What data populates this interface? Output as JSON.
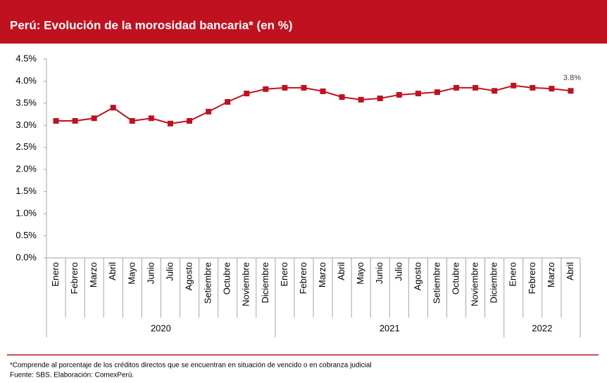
{
  "chart_data": {
    "type": "line",
    "title": "Perú: Evolución de la morosidad bancaria* (en %)",
    "categories": [
      "Enero",
      "Febrero",
      "Marzo",
      "Abril",
      "Mayo",
      "Junio",
      "Julio",
      "Agosto",
      "Setiembre",
      "Octubre",
      "Noviembre",
      "Diciembre",
      "Enero",
      "Febrero",
      "Marzo",
      "Abril",
      "Mayo",
      "Junio",
      "Julio",
      "Agosto",
      "Setiembre",
      "Octubre",
      "Noviembre",
      "Diciembre",
      "Enero",
      "Febrero",
      "Marzo",
      "Abril"
    ],
    "years": [
      "2020",
      "2021",
      "2022"
    ],
    "series": [
      {
        "name": "Morosidad bancaria",
        "color": "#c0111f",
        "values": [
          3.1,
          3.1,
          3.16,
          3.4,
          3.1,
          3.16,
          3.04,
          3.1,
          3.31,
          3.53,
          3.72,
          3.82,
          3.85,
          3.85,
          3.77,
          3.64,
          3.58,
          3.61,
          3.69,
          3.72,
          3.75,
          3.85,
          3.85,
          3.78,
          3.9,
          3.85,
          3.83,
          3.78
        ],
        "value_labels": [
          null,
          null,
          null,
          null,
          null,
          null,
          null,
          null,
          null,
          null,
          null,
          null,
          null,
          null,
          null,
          null,
          null,
          null,
          null,
          null,
          null,
          null,
          null,
          null,
          null,
          null,
          null,
          "3.8%"
        ]
      }
    ],
    "ylim": [
      0,
      4.5
    ],
    "yticks": [
      {
        "value": 0,
        "label": "0.0%"
      },
      {
        "value": 0.5,
        "label": "0.5%"
      },
      {
        "value": 1,
        "label": "1.0%"
      },
      {
        "value": 1.5,
        "label": "1.5%"
      },
      {
        "value": 2,
        "label": "2.0%"
      },
      {
        "value": 2.5,
        "label": "2.5%"
      },
      {
        "value": 3,
        "label": "3.0%"
      },
      {
        "value": 3.5,
        "label": "3.5%"
      },
      {
        "value": 4,
        "label": "4.0%"
      },
      {
        "value": 4.5,
        "label": "4.5%"
      }
    ],
    "grid": false,
    "note": "*Comprende al porcentaje de los créditos directos que se encuentran en situación de vencido o en cobranza judicial",
    "source": "Fuente: SBS. Elaboración: ComexPerú."
  }
}
